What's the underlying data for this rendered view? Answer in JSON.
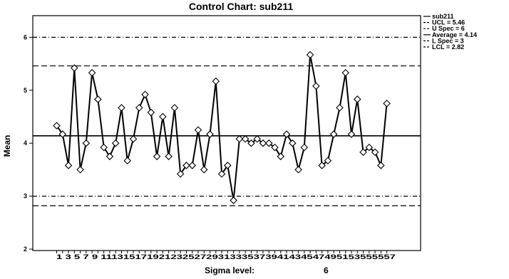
{
  "chart_data": {
    "type": "line",
    "title": "Control Chart: sub211",
    "xlabel": "Sigma level:",
    "sigma_value": "6",
    "ylabel": "Mean",
    "ylim": [
      2,
      6.4
    ],
    "yticks": [
      "2",
      "3",
      "4",
      "5",
      "6"
    ],
    "x_tick_text": "1 3 5 7 9 11131517192123252729313335373941434547495153555557",
    "xlim": [
      0,
      58
    ],
    "series": [
      {
        "name": "sub211",
        "x": [
          1,
          2,
          3,
          4,
          5,
          6,
          7,
          8,
          9,
          10,
          11,
          12,
          13,
          14,
          15,
          16,
          17,
          18,
          19,
          20,
          21,
          22,
          23,
          24,
          25,
          26,
          27,
          28,
          29,
          30,
          31,
          32,
          33,
          34,
          35,
          36,
          37,
          38,
          39,
          40,
          41,
          42,
          43,
          44,
          45,
          46,
          47,
          48,
          49,
          50,
          51,
          52,
          53,
          54,
          55,
          56,
          57
        ],
        "values": [
          4.33,
          4.17,
          3.58,
          5.42,
          3.5,
          4.0,
          5.33,
          4.83,
          3.92,
          3.75,
          4.0,
          4.67,
          3.67,
          4.08,
          4.67,
          4.92,
          4.58,
          3.75,
          4.5,
          3.75,
          4.67,
          3.42,
          3.58,
          3.58,
          4.25,
          3.5,
          4.17,
          5.17,
          3.42,
          3.58,
          2.92,
          4.08,
          4.08,
          4.0,
          4.08,
          4.0,
          4.0,
          3.92,
          3.75,
          4.17,
          4.0,
          3.5,
          3.92,
          5.67,
          5.08,
          3.58,
          3.67,
          4.17,
          4.67,
          5.33,
          4.17,
          4.83,
          3.83,
          3.92,
          3.83,
          3.58,
          4.75
        ]
      }
    ],
    "control_lines": [
      {
        "label": "UCL = 5.46",
        "value": 5.46,
        "style": "long-dash"
      },
      {
        "label": "U Spec = 6",
        "value": 6.0,
        "style": "dash-dot"
      },
      {
        "label": "Average = 4.14",
        "value": 4.14,
        "style": "solid"
      },
      {
        "label": "L Spec = 3",
        "value": 3.0,
        "style": "dash-dot"
      },
      {
        "label": "LCL = 2.82",
        "value": 2.82,
        "style": "long-dash"
      }
    ],
    "legend": "right"
  }
}
